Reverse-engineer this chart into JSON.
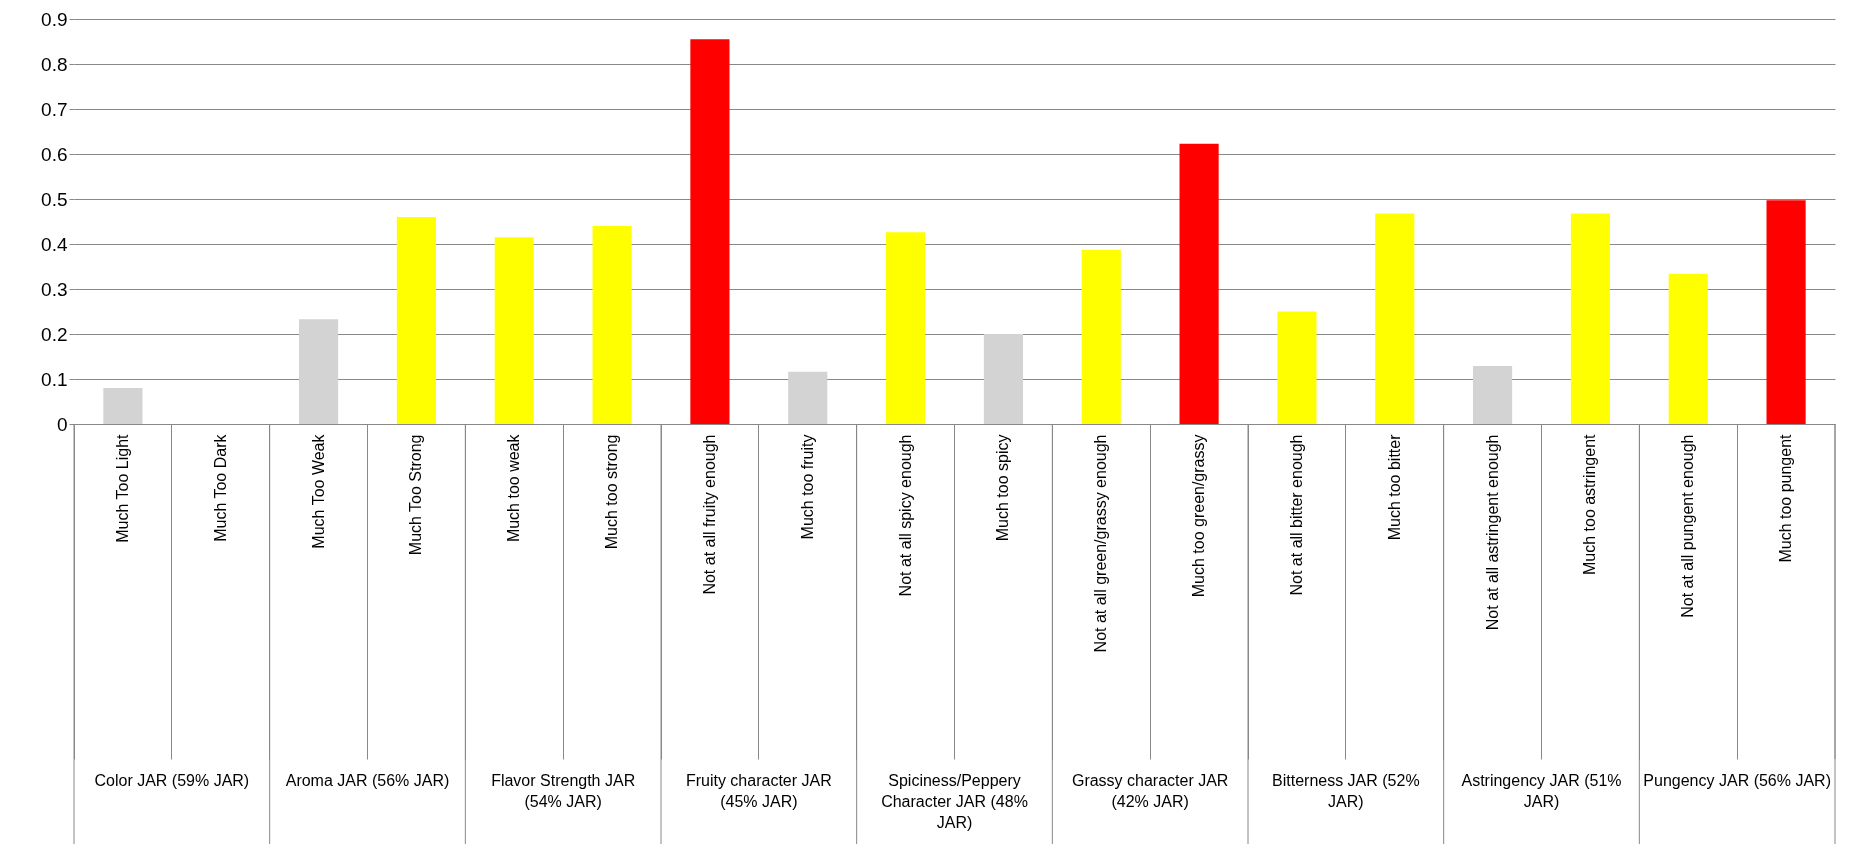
{
  "chart_data": {
    "type": "bar",
    "categories": [
      "Much Too Light",
      "Much Too Dark",
      "Much Too Weak",
      "Much Too Strong",
      "Much too weak",
      "Much too strong",
      "Not at all fruity enough",
      "Much too fruity",
      "Not at all spicy enough",
      "Much too spicy",
      "Not at all green/grassy enough",
      "Much too green/grassy",
      "Not at all bitter enough",
      "Much too bitter",
      "Not at all astringent enough",
      "Much too astringent",
      "Not at all pungent enough",
      "Much too pungent"
    ],
    "values": [
      0.08,
      0,
      0.233,
      0.46,
      0.415,
      0.44,
      0.855,
      0.116,
      0.426,
      0.2,
      0.387,
      0.623,
      0.25,
      0.468,
      0.129,
      0.468,
      0.334,
      0.497
    ],
    "colors": [
      "#d3d3d3",
      "#d3d3d3",
      "#d3d3d3",
      "#ffff00",
      "#ffff00",
      "#ffff00",
      "#ff0000",
      "#d3d3d3",
      "#ffff00",
      "#d3d3d3",
      "#ffff00",
      "#ff0000",
      "#ffff00",
      "#ffff00",
      "#d3d3d3",
      "#ffff00",
      "#ffff00",
      "#ff0000"
    ],
    "ylim": [
      0,
      0.9
    ],
    "yticks": [
      0,
      0.1,
      0.2,
      0.3,
      0.4,
      0.5,
      0.6,
      0.7,
      0.8,
      0.9
    ],
    "grid": "y",
    "annotations": [
      "Color JAR (59% JAR)",
      "Aroma JAR (56% JAR)",
      "Flavor Strength JAR (54% JAR)",
      "Fruity character JAR (45% JAR)",
      "Spiciness/Peppery Character JAR (48% JAR)",
      "Grassy character JAR (42% JAR)",
      "Bitterness JAR (52% JAR)",
      "Astringency JAR (51% JAR)",
      "Pungency JAR (56% JAR)"
    ]
  }
}
